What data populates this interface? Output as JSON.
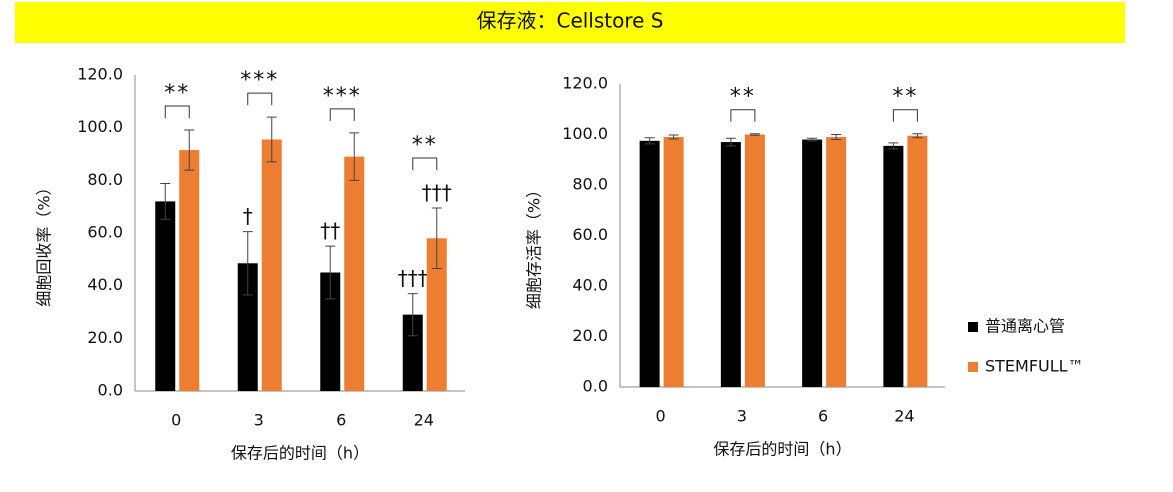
{
  "header": {
    "title": "保存液：Cellstore S"
  },
  "chart_data": [
    {
      "type": "bar",
      "x_label": "保存后的时间（h）",
      "y_label": "细胞回收率（%）",
      "categories": [
        "0",
        "3",
        "6",
        "24"
      ],
      "ylim": [
        0,
        120
      ],
      "yticks": [
        {
          "value": 0,
          "label": "0.0"
        },
        {
          "value": 20,
          "label": "20.0"
        },
        {
          "value": 40,
          "label": "40.0"
        },
        {
          "value": 60,
          "label": "60.0"
        },
        {
          "value": 80,
          "label": "80.0"
        },
        {
          "value": 100,
          "label": "100.0"
        },
        {
          "value": 120,
          "label": "120.0"
        }
      ],
      "significance": [
        "**",
        "***",
        "***",
        "**"
      ],
      "series": [
        {
          "color": "#000000",
          "values": [
            72.0,
            48.5,
            45.0,
            29.0
          ],
          "errors": [
            6.8,
            12.0,
            10.0,
            8.0
          ],
          "marks": [
            null,
            "†",
            "††",
            "†††"
          ]
        },
        {
          "color": "#ed7d31",
          "values": [
            91.5,
            95.5,
            89.0,
            58.0
          ],
          "errors": [
            7.6,
            8.5,
            9.0,
            11.5
          ],
          "marks": [
            null,
            null,
            null,
            "†††"
          ]
        }
      ]
    },
    {
      "type": "bar",
      "x_label": "保存后的时间（h）",
      "y_label": "细胞存活率（%）",
      "categories": [
        "0",
        "3",
        "6",
        "24"
      ],
      "ylim": [
        0,
        120
      ],
      "yticks": [
        {
          "value": 0,
          "label": "0.0"
        },
        {
          "value": 20,
          "label": "20.0"
        },
        {
          "value": 40,
          "label": "40.0"
        },
        {
          "value": 60,
          "label": "60.0"
        },
        {
          "value": 80,
          "label": "80.0"
        },
        {
          "value": 100,
          "label": "100.0"
        },
        {
          "value": 120,
          "label": "120.0"
        }
      ],
      "significance": [
        null,
        "**",
        null,
        "**"
      ],
      "legend": "right",
      "series": [
        {
          "name": "普通离心管",
          "color": "#000000",
          "values": [
            97.5,
            97.0,
            98.0,
            95.5
          ],
          "errors": [
            1.2,
            1.5,
            0.5,
            1.2
          ]
        },
        {
          "name": "STEMFULL™",
          "color": "#ed7d31",
          "values": [
            99.0,
            100.0,
            99.0,
            99.5
          ],
          "errors": [
            0.8,
            0.3,
            1.0,
            0.8
          ]
        }
      ]
    }
  ]
}
